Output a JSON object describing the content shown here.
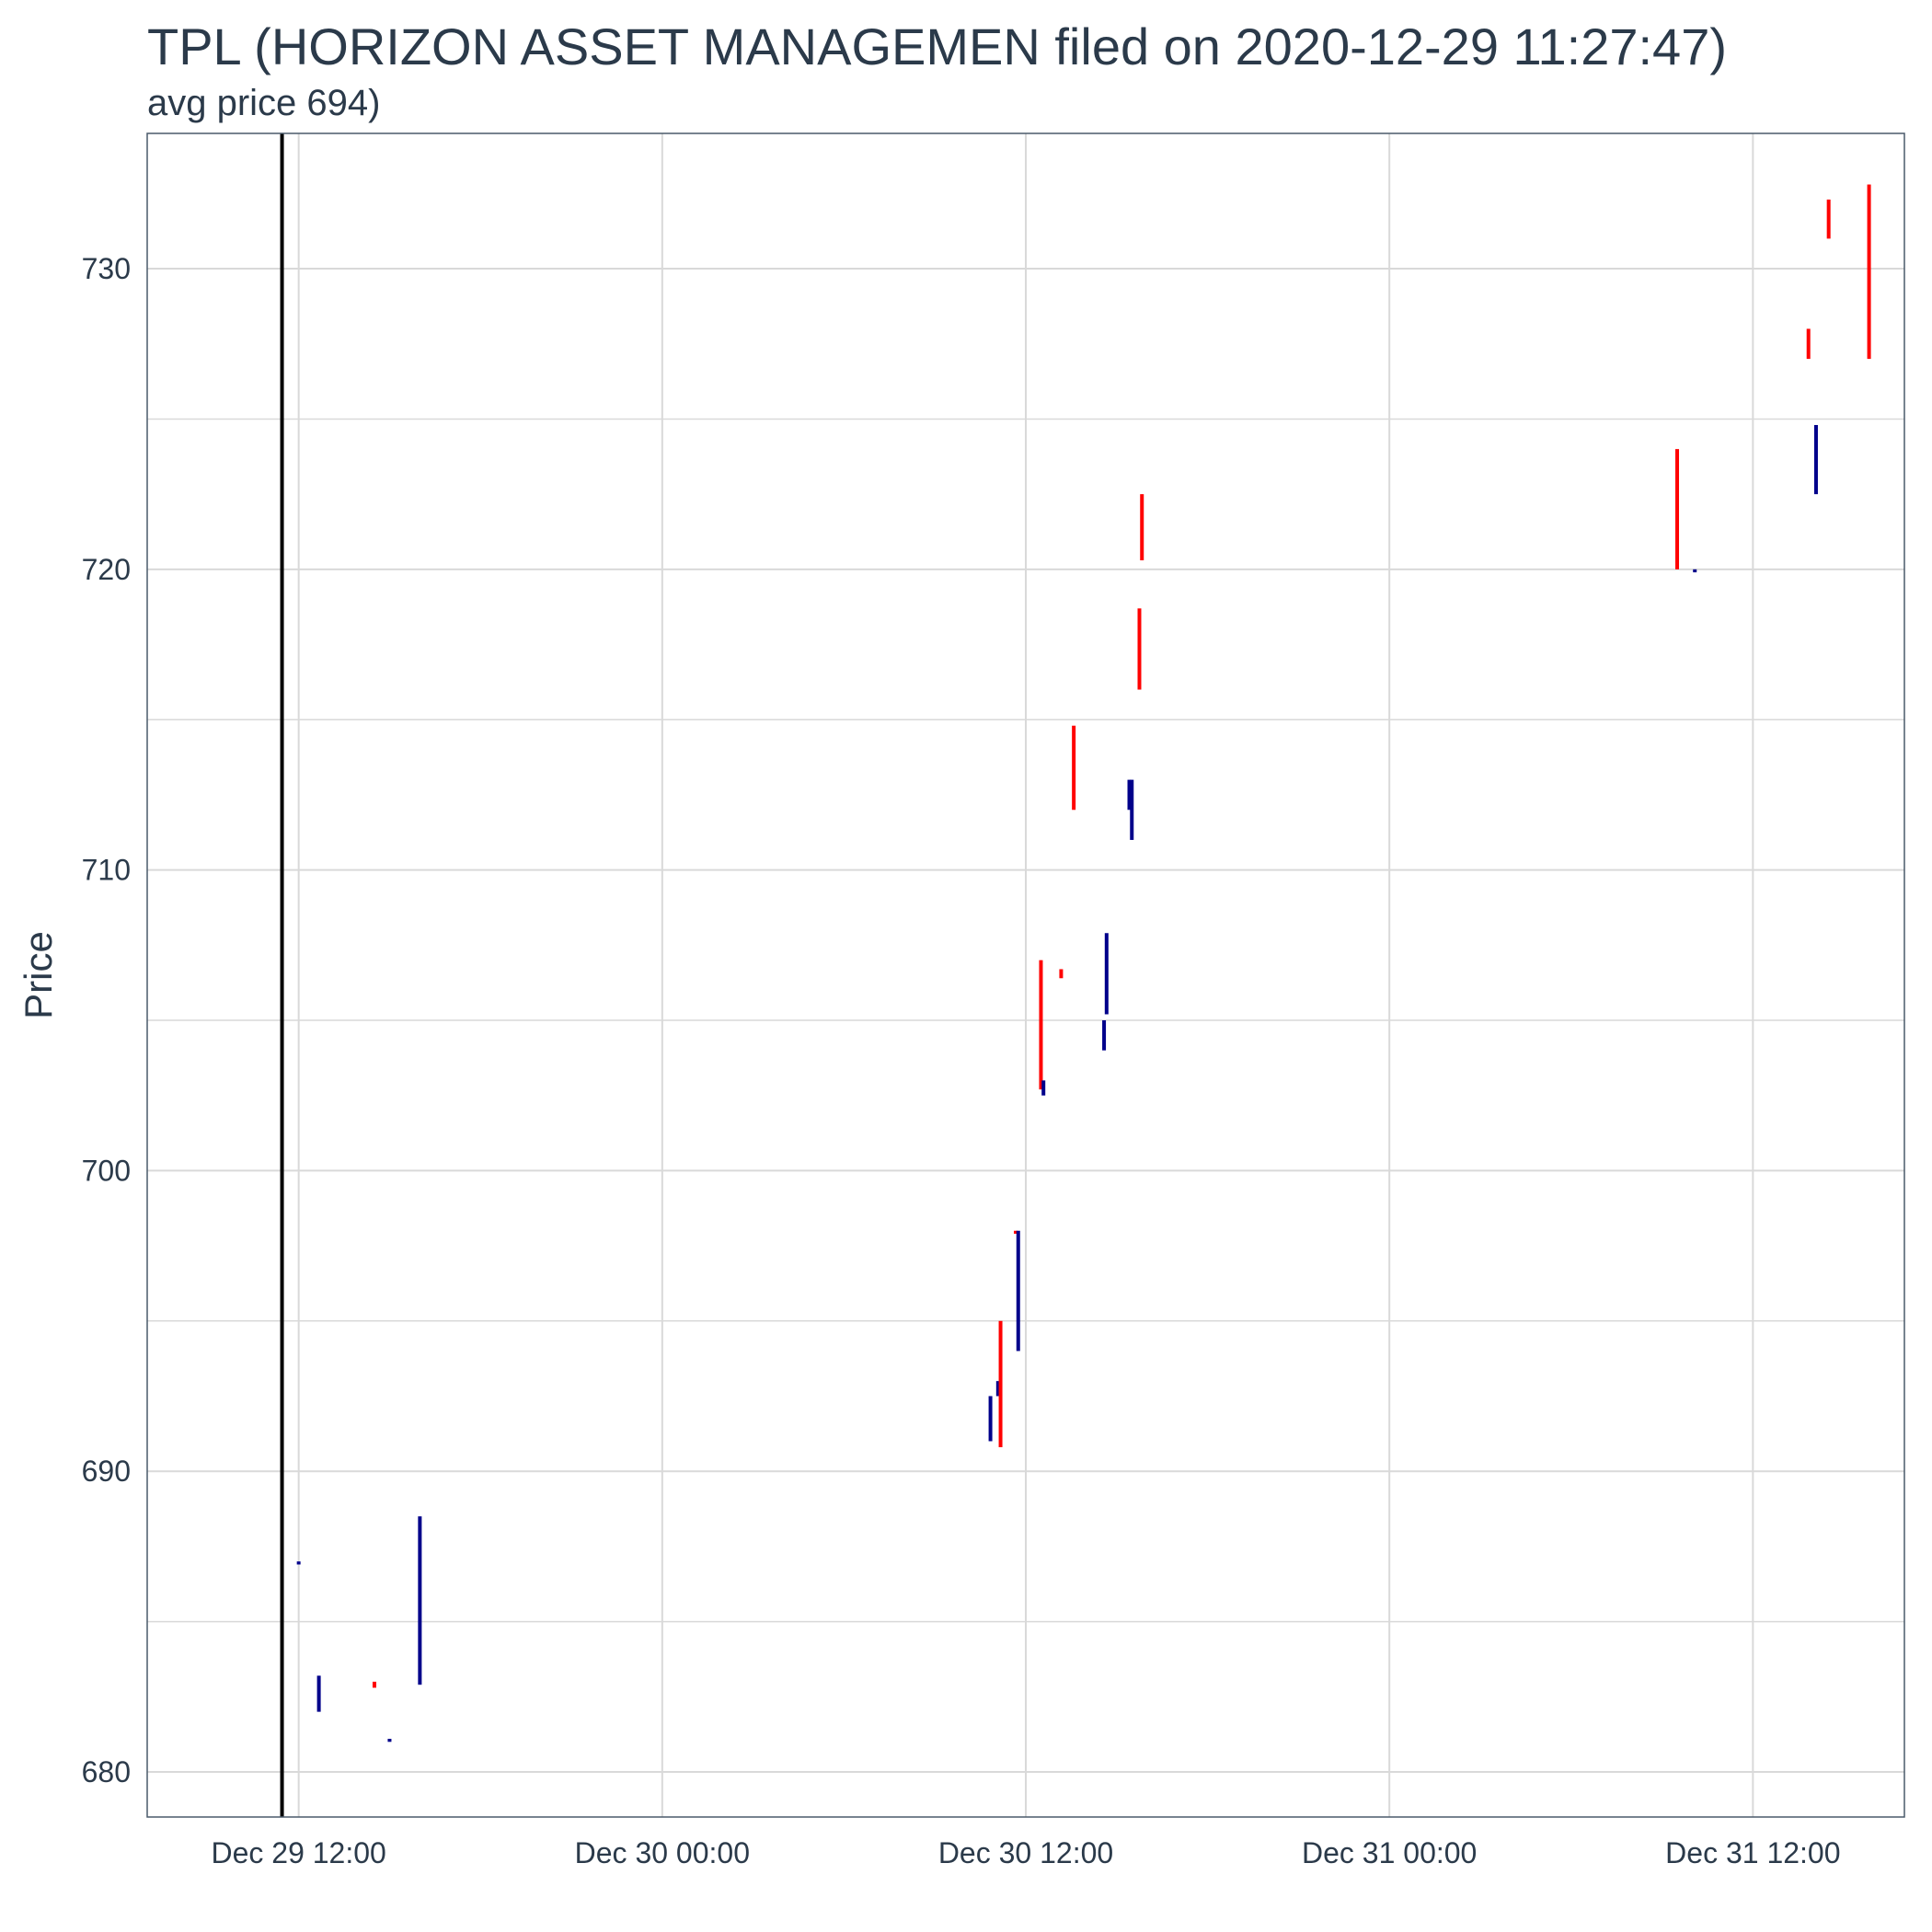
{
  "chart_data": {
    "type": "ohlc",
    "title": "TPL (HORIZON ASSET MANAGEMEN filed on 2020-12-29 11:27:47)",
    "subtitle": "avg price 694)",
    "ylabel": "Price",
    "xlabel": "",
    "x_range": [
      "2020-12-29 07:00",
      "2020-12-31 17:00"
    ],
    "ylim": [
      678.5,
      734.5
    ],
    "y_ticks": [
      680,
      690,
      700,
      710,
      720,
      730
    ],
    "x_ticks": [
      {
        "t": "2020-12-29 12:00",
        "label": "Dec 29 12:00"
      },
      {
        "t": "2020-12-30 00:00",
        "label": "Dec 30 00:00"
      },
      {
        "t": "2020-12-30 12:00",
        "label": "Dec 30 12:00"
      },
      {
        "t": "2020-12-31 00:00",
        "label": "Dec 31 00:00"
      },
      {
        "t": "2020-12-31 12:00",
        "label": "Dec 31 12:00"
      }
    ],
    "filing_time": "2020-12-29 11:27",
    "grid": true,
    "colors": {
      "up": "#ff0000",
      "down": "#00008b",
      "filing_line": "#000000",
      "grid": "#d9d9d9",
      "axis": "#4a5a6a"
    },
    "bars": [
      {
        "t": "2020-12-29 12:00",
        "low": 686.9,
        "high": 687.0,
        "dir": "down"
      },
      {
        "t": "2020-12-29 12:40",
        "low": 682.0,
        "high": 683.2,
        "dir": "down"
      },
      {
        "t": "2020-12-29 14:30",
        "low": 682.8,
        "high": 683.0,
        "dir": "up"
      },
      {
        "t": "2020-12-29 15:00",
        "low": 681.0,
        "high": 681.1,
        "dir": "down"
      },
      {
        "t": "2020-12-29 16:00",
        "low": 682.9,
        "high": 688.5,
        "dir": "down"
      },
      {
        "t": "2020-12-30 10:50",
        "low": 691.0,
        "high": 692.5,
        "dir": "down"
      },
      {
        "t": "2020-12-30 11:05",
        "low": 692.5,
        "high": 693.0,
        "dir": "down"
      },
      {
        "t": "2020-12-30 11:10",
        "low": 690.8,
        "high": 695.0,
        "dir": "up"
      },
      {
        "t": "2020-12-30 11:40",
        "low": 697.9,
        "high": 698.0,
        "dir": "up"
      },
      {
        "t": "2020-12-30 11:45",
        "low": 694.0,
        "high": 698.0,
        "dir": "down"
      },
      {
        "t": "2020-12-30 12:30",
        "low": 702.7,
        "high": 707.0,
        "dir": "up"
      },
      {
        "t": "2020-12-30 12:35",
        "low": 702.5,
        "high": 703.0,
        "dir": "down"
      },
      {
        "t": "2020-12-30 13:10",
        "low": 706.4,
        "high": 706.7,
        "dir": "up"
      },
      {
        "t": "2020-12-30 13:35",
        "low": 712.0,
        "high": 714.8,
        "dir": "up"
      },
      {
        "t": "2020-12-30 14:35",
        "low": 704.0,
        "high": 705.0,
        "dir": "down"
      },
      {
        "t": "2020-12-30 14:40",
        "low": 705.2,
        "high": 707.9,
        "dir": "down"
      },
      {
        "t": "2020-12-30 15:25",
        "low": 712.0,
        "high": 713.0,
        "dir": "down"
      },
      {
        "t": "2020-12-30 15:30",
        "low": 711.0,
        "high": 713.0,
        "dir": "down"
      },
      {
        "t": "2020-12-30 15:45",
        "low": 716.0,
        "high": 718.7,
        "dir": "up"
      },
      {
        "t": "2020-12-30 15:50",
        "low": 720.3,
        "high": 722.5,
        "dir": "up"
      },
      {
        "t": "2020-12-31 09:30",
        "low": 720.0,
        "high": 724.0,
        "dir": "up"
      },
      {
        "t": "2020-12-31 10:05",
        "low": 719.9,
        "high": 720.0,
        "dir": "down"
      },
      {
        "t": "2020-12-31 13:50",
        "low": 727.0,
        "high": 728.0,
        "dir": "up"
      },
      {
        "t": "2020-12-31 14:05",
        "low": 722.5,
        "high": 724.8,
        "dir": "down"
      },
      {
        "t": "2020-12-31 14:30",
        "low": 731.0,
        "high": 732.3,
        "dir": "up"
      },
      {
        "t": "2020-12-31 15:50",
        "low": 727.0,
        "high": 732.8,
        "dir": "up"
      }
    ]
  }
}
